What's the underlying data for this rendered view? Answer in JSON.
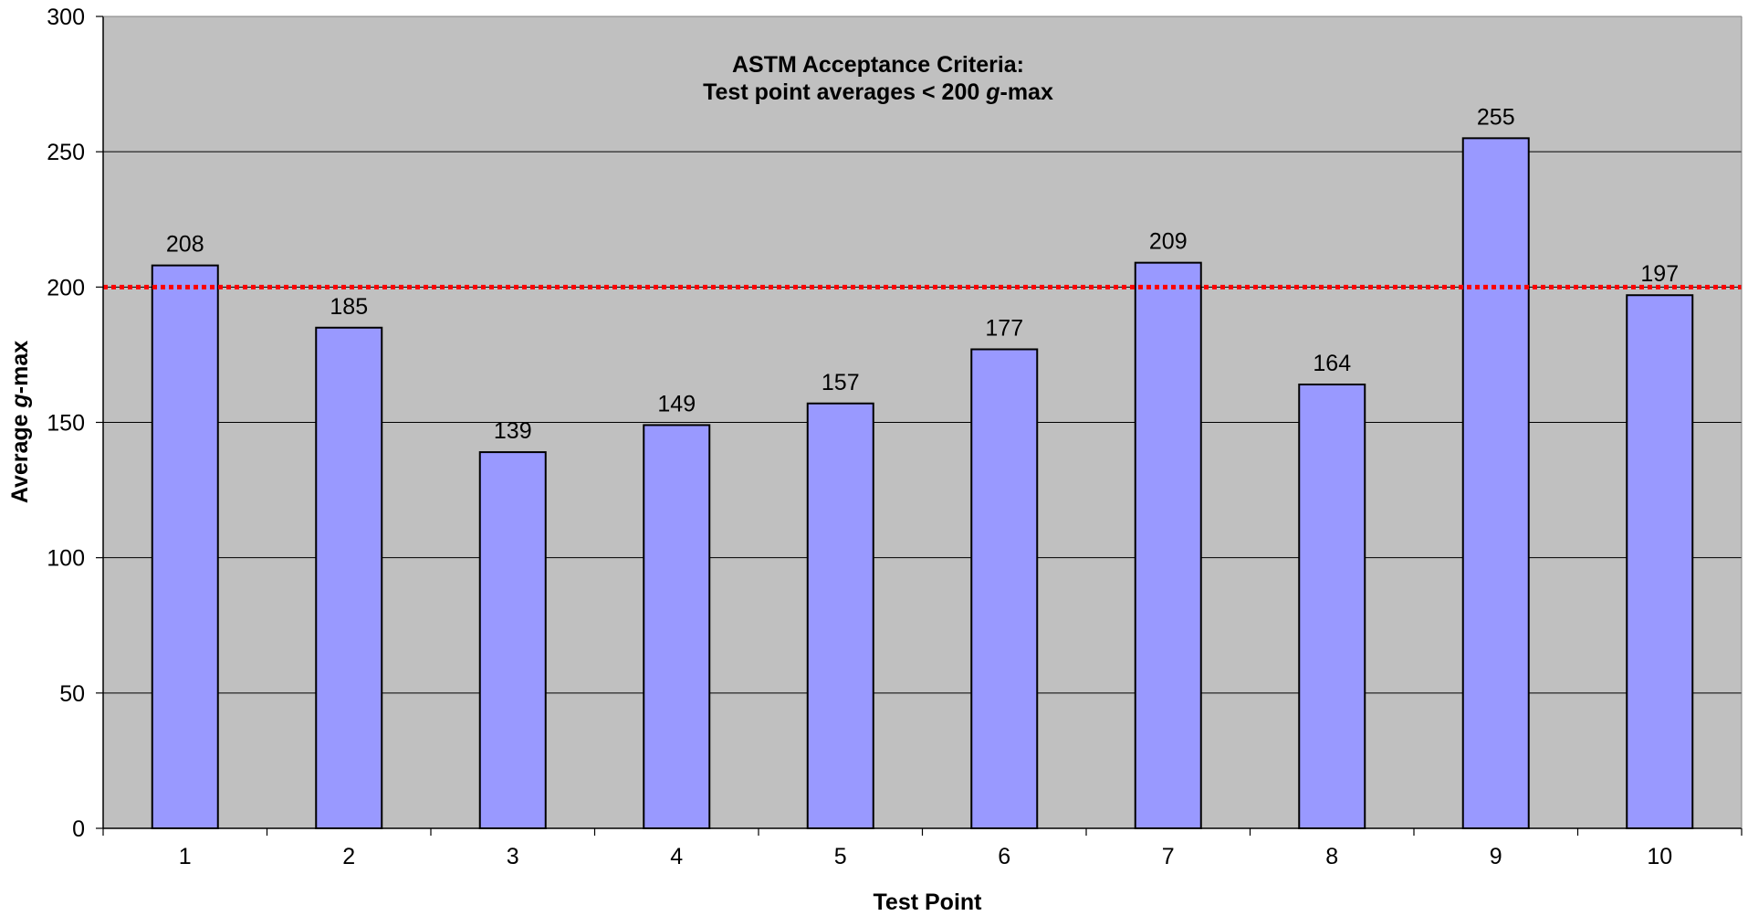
{
  "chart_data": {
    "type": "bar",
    "categories": [
      "1",
      "2",
      "3",
      "4",
      "5",
      "6",
      "7",
      "8",
      "9",
      "10"
    ],
    "values": [
      208,
      185,
      139,
      149,
      157,
      177,
      209,
      164,
      255,
      197
    ],
    "data_labels": [
      "208",
      "185",
      "139",
      "149",
      "157",
      "177",
      "209",
      "164",
      "255",
      "197"
    ],
    "title": "",
    "xlabel": "Test Point",
    "ylabel_prefix": "Average ",
    "ylabel_italic": "g",
    "ylabel_suffix": "-max",
    "ylim": [
      0,
      300
    ],
    "yticks": [
      0,
      50,
      100,
      150,
      200,
      250,
      300
    ],
    "ytick_labels": [
      "0",
      "50",
      "100",
      "150",
      "200",
      "250",
      "300"
    ],
    "grid": true,
    "reference_line": {
      "value": 200,
      "style": "dotted",
      "color": "#ff0000"
    },
    "annotation": {
      "line1": "ASTM Acceptance Criteria:",
      "line2_prefix": "Test point averages < 200 ",
      "line2_italic": "g",
      "line2_suffix": "-max"
    },
    "colors": {
      "plot_background": "#c0c0c0",
      "bar_fill": "#9999ff",
      "bar_stroke": "#000000",
      "gridline": "#000000"
    }
  }
}
